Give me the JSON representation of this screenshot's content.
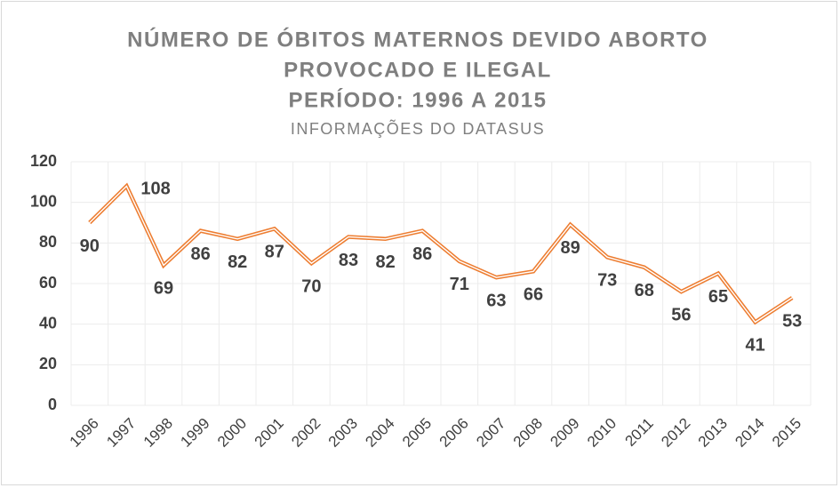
{
  "chart_data": {
    "type": "line",
    "title": [
      "NÚMERO DE ÓBITOS MATERNOS DEVIDO ABORTO",
      "PROVOCADO E ILEGAL",
      "PERÍODO: 1996 A 2015"
    ],
    "subtitle": "INFORMAÇÕES DO DATASUS",
    "categories": [
      "1996",
      "1997",
      "1998",
      "1999",
      "2000",
      "2001",
      "2002",
      "2003",
      "2004",
      "2005",
      "2006",
      "2007",
      "2008",
      "2009",
      "2010",
      "2011",
      "2012",
      "2013",
      "2014",
      "2015"
    ],
    "values": [
      90,
      108,
      69,
      86,
      82,
      87,
      70,
      83,
      82,
      86,
      71,
      63,
      66,
      89,
      73,
      68,
      56,
      65,
      41,
      53
    ],
    "color": "#ed7d31",
    "ylim": [
      0,
      120
    ],
    "yticks": [
      0,
      20,
      40,
      60,
      80,
      100,
      120
    ],
    "grid": true
  }
}
